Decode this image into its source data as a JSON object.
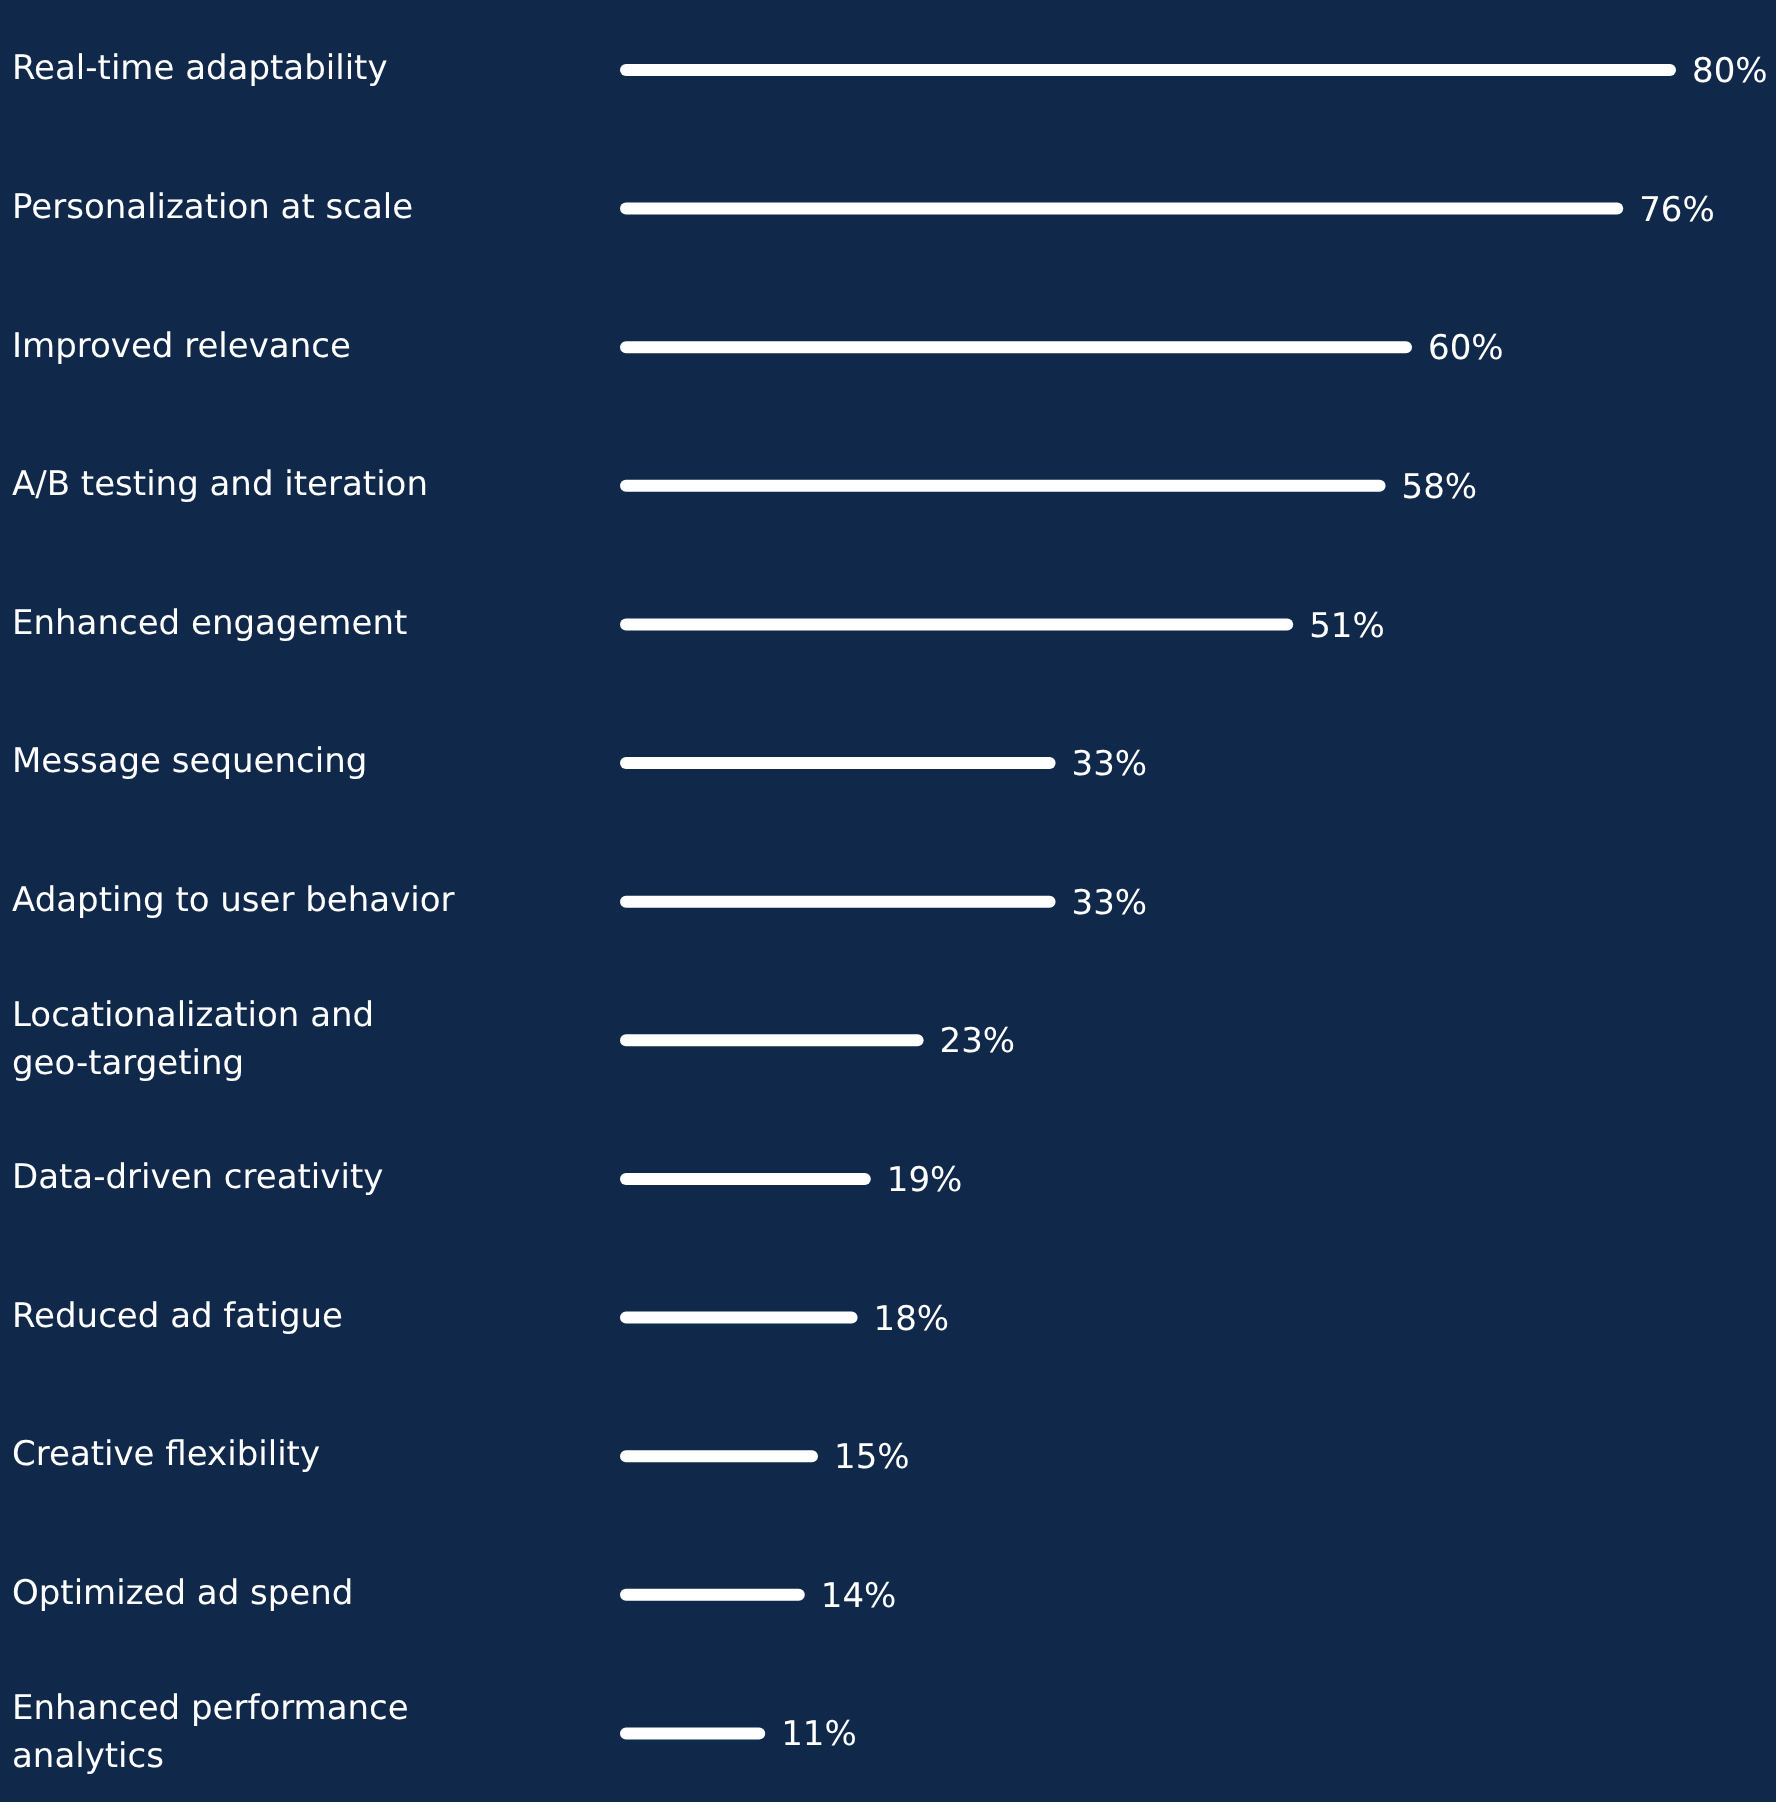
{
  "chart_data": {
    "type": "bar",
    "orientation": "horizontal",
    "categories": [
      "Real-time adaptability",
      "Personalization at scale",
      "Improved relevance",
      "A/B testing and iteration",
      "Enhanced engagement",
      "Message sequencing",
      "Adapting to user behavior",
      "Locationalization and geo-targeting",
      "Data-driven creativity",
      "Reduced ad fatigue",
      "Creative flexibility",
      "Optimized ad spend",
      "Enhanced performance analytics"
    ],
    "values": [
      80,
      76,
      60,
      58,
      51,
      33,
      33,
      23,
      19,
      18,
      15,
      14,
      11
    ],
    "value_labels": [
      "80%",
      "76%",
      "60%",
      "58%",
      "51%",
      "33%",
      "33%",
      "23%",
      "19%",
      "18%",
      "15%",
      "14%",
      "11%"
    ],
    "color": "#ffffff",
    "grid": false,
    "legend": false
  }
}
